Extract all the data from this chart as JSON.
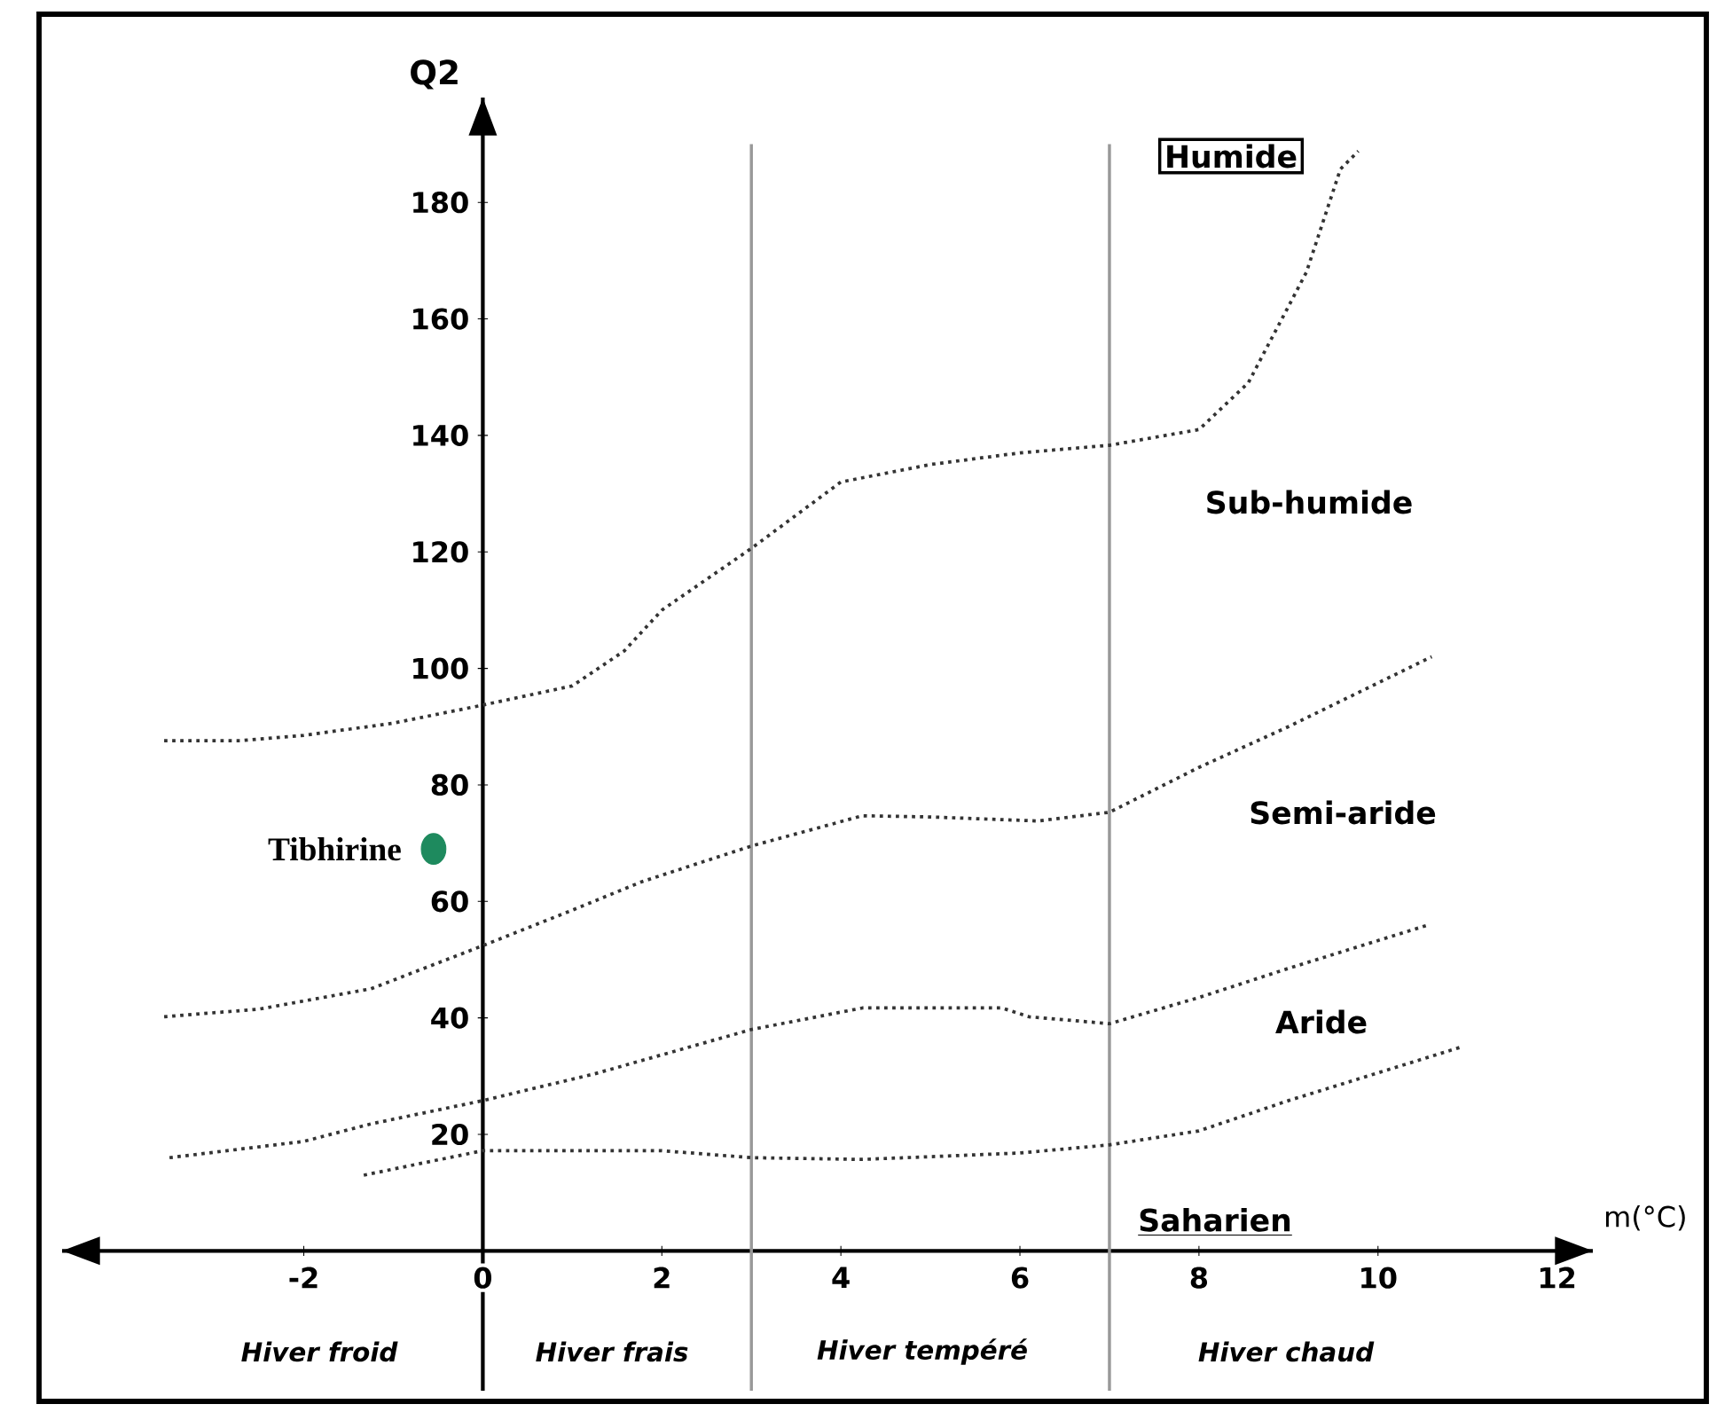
{
  "chart_data": {
    "type": "line",
    "xlabel": "m(°C)",
    "ylabel": "Q2",
    "xlim": [
      -4.7,
      12.4
    ],
    "ylim": [
      -24,
      198
    ],
    "xticks": [
      -2,
      0,
      2,
      4,
      6,
      8,
      10,
      12
    ],
    "yticks": [
      20,
      40,
      60,
      80,
      100,
      120,
      140,
      160,
      180
    ],
    "line_style": "dotted",
    "marker": "none",
    "legend": false,
    "grid": false,
    "series": [
      {
        "color": "#333333",
        "x": [
          -3.56,
          -2.7,
          -2,
          -1,
          0,
          1,
          1.58,
          2,
          3,
          4,
          5,
          6,
          7,
          8,
          8.55,
          9.2,
          9.58,
          9.78
        ],
        "values": [
          87.6,
          87.6,
          88.5,
          90.6,
          93.7,
          97,
          103,
          110,
          120.6,
          132,
          135,
          137,
          138.3,
          141,
          149,
          168,
          185.7,
          188.8
        ]
      },
      {
        "color": "#333333",
        "x": [
          -3.56,
          -2.5,
          -1.25,
          0,
          1,
          1.78,
          3,
          4.24,
          5,
          6.2,
          7,
          8,
          9,
          10.6
        ],
        "values": [
          40.2,
          41.5,
          45,
          52.4,
          58.5,
          63.4,
          69.5,
          74.7,
          74.5,
          73.8,
          75.3,
          83,
          90,
          102
        ]
      },
      {
        "color": "#333333",
        "x": [
          -3.5,
          -2,
          -1.25,
          0,
          1.25,
          3,
          4.24,
          5.8,
          6.1,
          7,
          8,
          9,
          10.57
        ],
        "values": [
          16,
          18.8,
          21.8,
          25.8,
          30.4,
          38,
          41.7,
          41.7,
          40.2,
          39,
          43.5,
          48.5,
          56
        ]
      },
      {
        "color": "#333333",
        "x": [
          -1.33,
          0,
          2,
          3,
          4.24,
          6,
          7,
          8,
          9,
          10.93
        ],
        "values": [
          13,
          17.2,
          17.2,
          16,
          15.7,
          16.8,
          18.2,
          20.6,
          25.8,
          35
        ]
      },
      {
        "type": "scatter",
        "name": "Tibhirine",
        "color": "#1e8a5e",
        "marker": "circle",
        "x": [
          -0.55
        ],
        "values": [
          69
        ]
      }
    ],
    "ref_lines": [
      {
        "axis": "x",
        "value": 3,
        "color": "#999999"
      },
      {
        "axis": "x",
        "value": 7,
        "color": "#999999"
      }
    ],
    "annotations": [
      "Humide",
      "Sub-humide",
      "Semi-aride",
      "Aride",
      "Saharien",
      "Hiver froid",
      "Hiver frais",
      "Hiver tempéré",
      "Hiver chaud"
    ]
  }
}
